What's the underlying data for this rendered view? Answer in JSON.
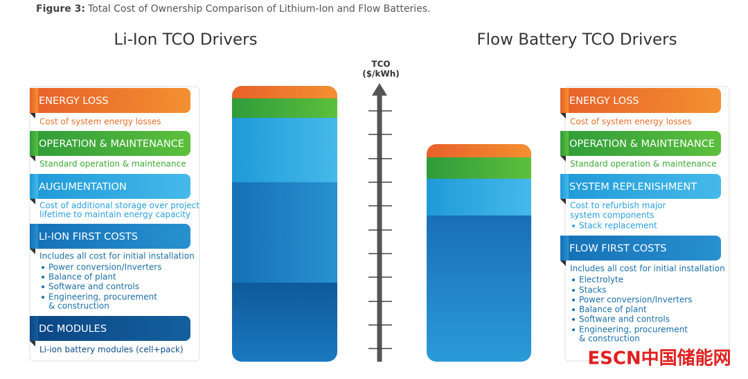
{
  "caption": {
    "label": "Figure 3:",
    "text": "Total Cost of Ownership Comparison of Lithium-Ion and Flow Batteries."
  },
  "left": {
    "title": "Li-Ion TCO Drivers",
    "sections": [
      {
        "heading": "ENERGY LOSS",
        "description": [
          "Cost of system energy losses"
        ],
        "bullets": []
      },
      {
        "heading": "OPERATION & MAINTENANCE",
        "description": [
          "Standard operation & maintenance"
        ],
        "bullets": []
      },
      {
        "heading": "AUGUMENTATION",
        "description": [
          "Cost of additional storage over project",
          "lifetime to maintain energy capacity"
        ],
        "bullets": []
      },
      {
        "heading": "LI-ION FIRST COSTS",
        "description": [
          "Includes all cost for initial installation"
        ],
        "bullets": [
          [
            "Power conversion/Inverters"
          ],
          [
            "Balance of plant"
          ],
          [
            "Software and controls"
          ],
          [
            "Engineering, procurement",
            "& construction"
          ]
        ]
      },
      {
        "heading": "DC MODULES",
        "description": [
          "Li-ion battery modules (cell+pack)"
        ],
        "bullets": []
      }
    ]
  },
  "right": {
    "title": "Flow Battery TCO Drivers",
    "sections": [
      {
        "heading": "ENERGY LOSS",
        "description": [
          "Cost of system energy losses"
        ],
        "bullets": []
      },
      {
        "heading": "OPERATION & MAINTENANCE",
        "description": [
          "Standard operation & maintenance"
        ],
        "bullets": []
      },
      {
        "heading": "SYSTEM REPLENISHMENT",
        "description": [
          "Cost to refurbish major",
          "system components"
        ],
        "bullets": [
          [
            "Stack replacement"
          ]
        ]
      },
      {
        "heading": "FLOW FIRST COSTS",
        "description": [
          "Includes all cost for initial installation"
        ],
        "bullets": [
          [
            "Electrolyte"
          ],
          [
            "Stacks"
          ],
          [
            "Power conversion/Inverters"
          ],
          [
            "Balance of plant"
          ],
          [
            "Software and controls"
          ],
          [
            "Engineering, procurement",
            "& construction"
          ]
        ]
      }
    ]
  },
  "axis": {
    "title": [
      "TCO",
      "($/kWh)"
    ]
  },
  "watermark": "ESCN中国储能网"
}
